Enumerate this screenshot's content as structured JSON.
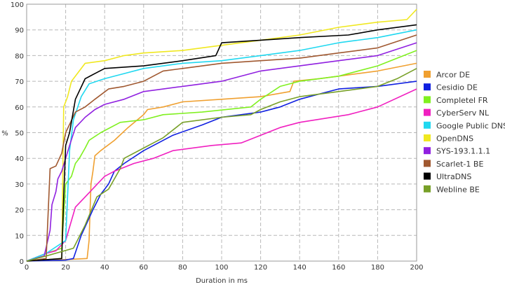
{
  "chart_data": {
    "type": "line",
    "title": "",
    "xlabel": "Duration in ms",
    "ylabel": "%",
    "xlim": [
      0,
      200
    ],
    "ylim": [
      0,
      100
    ],
    "xticks": [
      0,
      20,
      40,
      60,
      80,
      100,
      120,
      140,
      160,
      180,
      200
    ],
    "yticks": [
      0,
      10,
      20,
      30,
      40,
      50,
      60,
      70,
      80,
      90,
      100
    ],
    "grid": true,
    "legend": "right",
    "series": [
      {
        "name": "Arcor DE",
        "color": "#f0a030",
        "points": [
          [
            0,
            0
          ],
          [
            10,
            0.3
          ],
          [
            20,
            0.6
          ],
          [
            31,
            1
          ],
          [
            32,
            8
          ],
          [
            33,
            30
          ],
          [
            34,
            35
          ],
          [
            35,
            41
          ],
          [
            38,
            43
          ],
          [
            45,
            47
          ],
          [
            52,
            52
          ],
          [
            60,
            57
          ],
          [
            62,
            59
          ],
          [
            70,
            60
          ],
          [
            80,
            62
          ],
          [
            100,
            63
          ],
          [
            120,
            64
          ],
          [
            135,
            66
          ],
          [
            137,
            70
          ],
          [
            150,
            71
          ],
          [
            180,
            74
          ],
          [
            200,
            77
          ]
        ]
      },
      {
        "name": "Cesidio DE",
        "color": "#1020e0",
        "points": [
          [
            0,
            0
          ],
          [
            20,
            0.4
          ],
          [
            24,
            1
          ],
          [
            28,
            10
          ],
          [
            34,
            20
          ],
          [
            38,
            26
          ],
          [
            42,
            30
          ],
          [
            45,
            35
          ],
          [
            50,
            38
          ],
          [
            60,
            43
          ],
          [
            75,
            49
          ],
          [
            90,
            53
          ],
          [
            100,
            56
          ],
          [
            120,
            58
          ],
          [
            130,
            60
          ],
          [
            140,
            63
          ],
          [
            150,
            65
          ],
          [
            160,
            67
          ],
          [
            180,
            68
          ],
          [
            200,
            70
          ]
        ]
      },
      {
        "name": "Completel FR",
        "color": "#80f020",
        "points": [
          [
            0,
            0
          ],
          [
            10,
            3
          ],
          [
            18,
            5
          ],
          [
            20,
            30
          ],
          [
            23,
            33
          ],
          [
            25,
            38
          ],
          [
            27,
            40
          ],
          [
            30,
            44
          ],
          [
            32,
            47
          ],
          [
            38,
            50
          ],
          [
            48,
            54
          ],
          [
            60,
            55
          ],
          [
            70,
            57
          ],
          [
            90,
            58
          ],
          [
            115,
            60
          ],
          [
            120,
            63
          ],
          [
            130,
            68
          ],
          [
            140,
            70
          ],
          [
            160,
            72
          ],
          [
            180,
            76
          ],
          [
            200,
            82
          ]
        ]
      },
      {
        "name": "CyberServ NL",
        "color": "#f020c0",
        "points": [
          [
            0,
            0
          ],
          [
            10,
            3
          ],
          [
            15,
            4
          ],
          [
            20,
            8
          ],
          [
            25,
            21
          ],
          [
            30,
            25
          ],
          [
            35,
            29
          ],
          [
            40,
            33
          ],
          [
            45,
            35
          ],
          [
            55,
            38
          ],
          [
            65,
            40
          ],
          [
            75,
            43
          ],
          [
            95,
            45
          ],
          [
            110,
            46
          ],
          [
            120,
            49
          ],
          [
            130,
            52
          ],
          [
            140,
            54
          ],
          [
            165,
            57
          ],
          [
            180,
            60
          ],
          [
            200,
            67
          ]
        ]
      },
      {
        "name": "Google Public DNS",
        "color": "#20d8f0",
        "points": [
          [
            0,
            0
          ],
          [
            10,
            3
          ],
          [
            20,
            8
          ],
          [
            22,
            43
          ],
          [
            24,
            55
          ],
          [
            28,
            64
          ],
          [
            32,
            69
          ],
          [
            40,
            71
          ],
          [
            50,
            73
          ],
          [
            60,
            75
          ],
          [
            80,
            77
          ],
          [
            100,
            78
          ],
          [
            120,
            80
          ],
          [
            140,
            82
          ],
          [
            160,
            85
          ],
          [
            180,
            87
          ],
          [
            200,
            90
          ]
        ]
      },
      {
        "name": "OpenDNS",
        "color": "#f0e820",
        "points": [
          [
            0,
            0
          ],
          [
            18,
            1
          ],
          [
            19,
            60
          ],
          [
            21,
            64
          ],
          [
            23,
            70
          ],
          [
            30,
            77
          ],
          [
            40,
            78
          ],
          [
            50,
            80
          ],
          [
            60,
            81
          ],
          [
            80,
            82
          ],
          [
            100,
            84
          ],
          [
            120,
            86
          ],
          [
            140,
            88
          ],
          [
            160,
            91
          ],
          [
            180,
            93
          ],
          [
            195,
            94
          ],
          [
            200,
            98
          ]
        ]
      },
      {
        "name": "SYS-193.1.1.1",
        "color": "#9020e0",
        "points": [
          [
            0,
            0
          ],
          [
            9,
            2
          ],
          [
            12,
            12
          ],
          [
            13,
            22
          ],
          [
            15,
            27
          ],
          [
            16,
            32
          ],
          [
            18,
            35
          ],
          [
            20,
            40
          ],
          [
            22,
            45
          ],
          [
            25,
            52
          ],
          [
            30,
            56
          ],
          [
            35,
            59
          ],
          [
            40,
            61
          ],
          [
            50,
            63
          ],
          [
            60,
            66
          ],
          [
            80,
            68
          ],
          [
            100,
            70
          ],
          [
            120,
            74
          ],
          [
            140,
            76
          ],
          [
            160,
            78
          ],
          [
            180,
            80
          ],
          [
            200,
            85
          ]
        ]
      },
      {
        "name": "Scarlet-1 BE",
        "color": "#a05830",
        "points": [
          [
            0,
            0
          ],
          [
            10,
            1
          ],
          [
            12,
            36
          ],
          [
            15,
            37
          ],
          [
            18,
            42
          ],
          [
            20,
            50
          ],
          [
            25,
            58
          ],
          [
            30,
            60
          ],
          [
            35,
            63
          ],
          [
            42,
            67
          ],
          [
            50,
            68
          ],
          [
            60,
            70
          ],
          [
            70,
            74
          ],
          [
            80,
            75
          ],
          [
            100,
            77
          ],
          [
            120,
            78
          ],
          [
            140,
            79
          ],
          [
            160,
            81
          ],
          [
            180,
            83
          ],
          [
            200,
            88
          ]
        ]
      },
      {
        "name": "UltraDNS",
        "color": "#000000",
        "points": [
          [
            0,
            0
          ],
          [
            18,
            1
          ],
          [
            19,
            25
          ],
          [
            20,
            45
          ],
          [
            22,
            50
          ],
          [
            25,
            63
          ],
          [
            30,
            71
          ],
          [
            35,
            73
          ],
          [
            40,
            75
          ],
          [
            60,
            76
          ],
          [
            80,
            78
          ],
          [
            97,
            80
          ],
          [
            100,
            85
          ],
          [
            120,
            86
          ],
          [
            140,
            87
          ],
          [
            165,
            88
          ],
          [
            180,
            90
          ],
          [
            200,
            92
          ]
        ]
      },
      {
        "name": "Webline BE",
        "color": "#78a028",
        "points": [
          [
            0,
            0
          ],
          [
            10,
            2
          ],
          [
            24,
            5
          ],
          [
            30,
            14
          ],
          [
            36,
            25
          ],
          [
            42,
            28
          ],
          [
            48,
            36
          ],
          [
            50,
            40
          ],
          [
            60,
            44
          ],
          [
            70,
            48
          ],
          [
            80,
            54
          ],
          [
            100,
            56
          ],
          [
            115,
            57
          ],
          [
            120,
            59
          ],
          [
            130,
            62
          ],
          [
            140,
            64
          ],
          [
            160,
            66
          ],
          [
            180,
            68
          ],
          [
            190,
            71
          ],
          [
            200,
            75
          ]
        ]
      }
    ]
  }
}
